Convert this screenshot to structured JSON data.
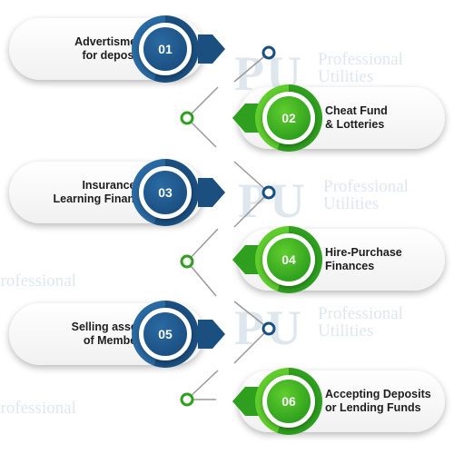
{
  "watermark": {
    "mark": "PU",
    "line1": "Professional",
    "line2": "Utilities"
  },
  "colors": {
    "navy": "#1b4f80",
    "navy_light": "#2a6aa3",
    "green": "#2e9f1e",
    "green_light": "#5fce2d",
    "line": "#9a9a9a",
    "dot_border": "#1b4f80"
  },
  "steps": [
    {
      "number": "01",
      "line1": "Advertisment",
      "line2": "for deposits",
      "color": "navy"
    },
    {
      "number": "02",
      "line1": "Cheat Fund",
      "line2": "& Lotteries",
      "color": "green"
    },
    {
      "number": "03",
      "line1": "Insurance &",
      "line2": "Learning Finance",
      "color": "navy"
    },
    {
      "number": "04",
      "line1": "Hire-Purchase",
      "line2": "Finances",
      "color": "green"
    },
    {
      "number": "05",
      "line1": "Selling assets",
      "line2": "of Members",
      "color": "navy"
    },
    {
      "number": "06",
      "line1": "Accepting Deposits",
      "line2": "or Lending Funds",
      "color": "green"
    }
  ]
}
